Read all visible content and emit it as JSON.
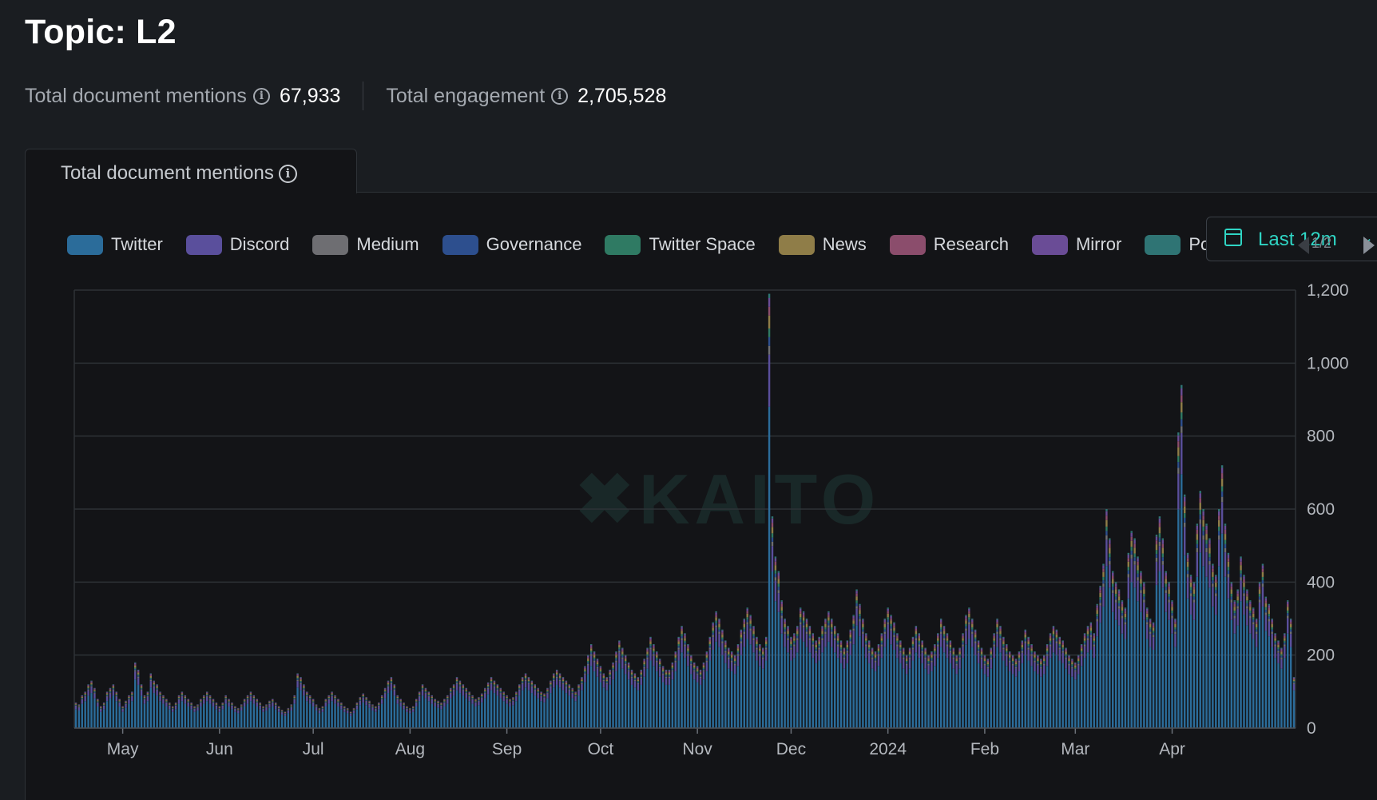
{
  "page": {
    "title": "Topic: L2",
    "stats": [
      {
        "label": "Total document mentions",
        "value": "67,933"
      },
      {
        "label": "Total engagement",
        "value": "2,705,528"
      }
    ]
  },
  "tab": {
    "label": "Total document mentions"
  },
  "date_range": {
    "label": "Last 12m"
  },
  "legend_pager": {
    "text": "1/2"
  },
  "watermark": "KAITO",
  "colors": {
    "Twitter": "#2b6c9a",
    "Discord": "#5a4f9c",
    "Medium": "#6e6e72",
    "Governance": "#2d4f8e",
    "Twitter Space": "#2f7a63",
    "News": "#8f7d48",
    "Research": "#8b4d6c",
    "Mirror": "#6a4c96",
    "Podcast": "#2f7474"
  },
  "chart_data": {
    "type": "bar",
    "stacked": true,
    "series_names": [
      "Twitter",
      "Discord",
      "Medium",
      "Governance",
      "Twitter Space",
      "News",
      "Research",
      "Mirror",
      "Podcast"
    ],
    "ylim": [
      0,
      1200
    ],
    "yticks": [
      "0",
      "200",
      "400",
      "600",
      "800",
      "1,000",
      "1,200"
    ],
    "ytick_values": [
      0,
      200,
      400,
      600,
      800,
      1000,
      1200
    ],
    "xticks": [
      {
        "label": "May",
        "day": 15
      },
      {
        "label": "Jun",
        "day": 46
      },
      {
        "label": "Jul",
        "day": 76
      },
      {
        "label": "Aug",
        "day": 107
      },
      {
        "label": "Sep",
        "day": 138
      },
      {
        "label": "Oct",
        "day": 168
      },
      {
        "label": "Nov",
        "day": 199
      },
      {
        "label": "Dec",
        "day": 229
      },
      {
        "label": "2024",
        "day": 260
      },
      {
        "label": "Feb",
        "day": 291
      },
      {
        "label": "Mar",
        "day": 320
      },
      {
        "label": "Apr",
        "day": 351
      }
    ],
    "daily_totals": [
      70,
      65,
      90,
      100,
      120,
      130,
      110,
      80,
      60,
      70,
      100,
      110,
      120,
      100,
      80,
      60,
      75,
      90,
      100,
      180,
      160,
      120,
      90,
      100,
      150,
      130,
      120,
      100,
      90,
      80,
      70,
      60,
      70,
      90,
      100,
      90,
      80,
      70,
      60,
      65,
      80,
      90,
      100,
      90,
      80,
      70,
      60,
      70,
      90,
      80,
      70,
      60,
      55,
      65,
      80,
      90,
      100,
      90,
      80,
      70,
      60,
      65,
      75,
      80,
      70,
      60,
      50,
      45,
      55,
      65,
      90,
      150,
      140,
      120,
      100,
      90,
      80,
      65,
      55,
      60,
      80,
      90,
      100,
      90,
      80,
      70,
      60,
      55,
      45,
      55,
      70,
      85,
      95,
      85,
      75,
      65,
      60,
      70,
      90,
      110,
      130,
      140,
      120,
      90,
      80,
      70,
      60,
      55,
      60,
      80,
      100,
      120,
      110,
      100,
      90,
      80,
      75,
      70,
      80,
      90,
      110,
      120,
      140,
      130,
      120,
      110,
      100,
      90,
      80,
      85,
      95,
      110,
      125,
      140,
      130,
      120,
      110,
      100,
      90,
      80,
      85,
      100,
      120,
      140,
      150,
      140,
      130,
      120,
      110,
      100,
      95,
      110,
      130,
      150,
      160,
      150,
      140,
      130,
      120,
      110,
      100,
      120,
      140,
      170,
      200,
      230,
      210,
      190,
      170,
      150,
      140,
      160,
      180,
      210,
      240,
      220,
      200,
      180,
      160,
      150,
      140,
      160,
      190,
      220,
      250,
      230,
      210,
      190,
      170,
      160,
      160,
      180,
      210,
      250,
      280,
      260,
      230,
      200,
      180,
      170,
      160,
      180,
      210,
      250,
      290,
      320,
      300,
      270,
      240,
      220,
      210,
      200,
      230,
      270,
      300,
      330,
      310,
      280,
      250,
      230,
      220,
      250,
      1190,
      580,
      470,
      430,
      350,
      300,
      280,
      250,
      260,
      280,
      330,
      320,
      300,
      280,
      260,
      240,
      250,
      280,
      300,
      320,
      300,
      280,
      260,
      240,
      220,
      240,
      270,
      310,
      380,
      340,
      300,
      260,
      240,
      220,
      210,
      230,
      260,
      300,
      330,
      310,
      290,
      260,
      240,
      220,
      200,
      220,
      250,
      280,
      260,
      240,
      220,
      200,
      210,
      230,
      260,
      300,
      280,
      260,
      240,
      220,
      200,
      220,
      260,
      310,
      330,
      300,
      270,
      240,
      220,
      200,
      190,
      220,
      260,
      300,
      280,
      250,
      230,
      210,
      200,
      190,
      210,
      240,
      270,
      250,
      230,
      210,
      200,
      190,
      200,
      230,
      260,
      280,
      270,
      250,
      240,
      220,
      200,
      190,
      180,
      200,
      230,
      260,
      280,
      290,
      260,
      340,
      390,
      450,
      600,
      520,
      430,
      400,
      380,
      350,
      330,
      480,
      540,
      520,
      470,
      430,
      400,
      330,
      300,
      290,
      530,
      580,
      520,
      430,
      400,
      350,
      300,
      810,
      940,
      640,
      480,
      420,
      400,
      560,
      650,
      600,
      560,
      520,
      450,
      420,
      600,
      720,
      560,
      480,
      400,
      350,
      380,
      470,
      420,
      380,
      350,
      330,
      300,
      400,
      450,
      360,
      340,
      300,
      260,
      240,
      220,
      260,
      350,
      300,
      140
    ]
  }
}
